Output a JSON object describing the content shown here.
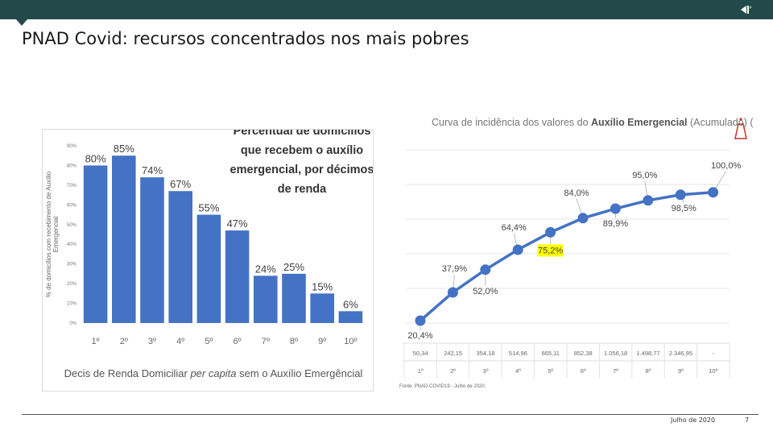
{
  "slide": {
    "title": "PNAD Covid: recursos concentrados nos mais pobres",
    "date": "Julho de 2020",
    "page": "7"
  },
  "colors": {
    "bar": "#4472c4",
    "line": "#4472c4",
    "highlight": "#ffff00",
    "header": "#224a4a"
  },
  "chart_data": [
    {
      "type": "bar",
      "title": "Percentual de domicílios que recebem o auxílio emergencial, por décimos de renda",
      "title_lines": [
        "Percentual de domicílios",
        "que recebem o auxílio",
        "emergencial, por décimos",
        "de renda"
      ],
      "ylabel_lines": [
        "% de domicílios com recebimento de Auxílio",
        "Emergencial"
      ],
      "xlabel_parts": [
        "Decis de Renda Domiciliar ",
        "per capita",
        " sem o Auxílio Emergêncial"
      ],
      "categories": [
        "1º",
        "2º",
        "3º",
        "4º",
        "5º",
        "6º",
        "7º",
        "8º",
        "9º",
        "10º"
      ],
      "values": [
        80,
        85,
        74,
        67,
        55,
        47,
        24,
        25,
        15,
        6
      ],
      "value_labels": [
        "80%",
        "85%",
        "74%",
        "67%",
        "55%",
        "47%",
        "24%",
        "25%",
        "15%",
        "6%"
      ],
      "yticks": [
        "0%",
        "10%",
        "20%",
        "30%",
        "40%",
        "50%",
        "60%",
        "70%",
        "80%",
        "90%"
      ],
      "ylim": [
        0,
        90
      ]
    },
    {
      "type": "line",
      "title_parts": [
        "Curva de incidência dos valores do ",
        "Auxílio Emergencial",
        " (Acumulado) (%)"
      ],
      "categories": [
        "1º",
        "2º",
        "3º",
        "4º",
        "5º",
        "6º",
        "7º",
        "8º",
        "9º",
        "10º"
      ],
      "values": [
        20.4,
        37.9,
        52.0,
        64.4,
        75.2,
        84.0,
        89.9,
        95.0,
        98.5,
        100.0
      ],
      "value_labels": [
        "20,4%",
        "37,9%",
        "52,0%",
        "64,4%",
        "75,2%",
        "84,0%",
        "89,9%",
        "95,0%",
        "98,5%",
        "100,0%"
      ],
      "highlight_index": 4,
      "table_row": [
        "50,34",
        "242,15",
        "354,18",
        "514,96",
        "665,11",
        "852,38",
        "1.056,18",
        "1.498,77",
        "2.346,95",
        "-"
      ],
      "source": "Fonte: PNAD COVID19 - Julho de 2020.",
      "ylim": [
        0,
        100
      ]
    }
  ]
}
